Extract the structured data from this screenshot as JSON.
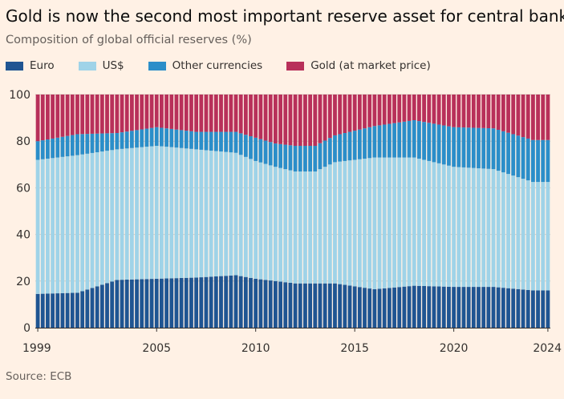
{
  "header": {
    "title": "Gold is now the second most important reserve asset for central banks",
    "subtitle": "Composition of global official reserves (%)"
  },
  "source": "Source: ECB",
  "colors": {
    "euro": "#1f5592",
    "usd": "#9fd3e8",
    "other": "#2b8ec9",
    "gold": "#b8305a",
    "grid": "#d6c9bd",
    "background": "#fff1e5"
  },
  "chart_data": {
    "type": "bar",
    "stacked": true,
    "interval": "quarterly",
    "x_start": 1999,
    "x_end": 2024,
    "ylim": [
      0,
      100
    ],
    "yticks": [
      0,
      20,
      40,
      60,
      80,
      100
    ],
    "xticks": [
      "1999",
      "2005",
      "2010",
      "2015",
      "2020",
      "2024"
    ],
    "legend_position": "top-left",
    "grid": true,
    "series": [
      {
        "name": "Euro",
        "color_key": "euro",
        "key_years": [
          1999,
          2001,
          2003,
          2005,
          2007,
          2009,
          2010,
          2011,
          2012,
          2013,
          2014,
          2016,
          2018,
          2020,
          2022,
          2024
        ],
        "key_values": [
          14.5,
          15,
          20.5,
          21,
          21.5,
          22.5,
          21,
          20,
          19,
          19,
          19,
          16.5,
          18,
          17.5,
          17.5,
          16
        ]
      },
      {
        "name": "US$",
        "color_key": "usd",
        "key_years": [
          1999,
          2001,
          2003,
          2005,
          2007,
          2009,
          2010,
          2011,
          2012,
          2013,
          2014,
          2016,
          2018,
          2020,
          2022,
          2024
        ],
        "key_values": [
          57.5,
          59,
          56,
          57,
          55,
          52.5,
          50.5,
          49,
          48,
          48,
          52,
          56.5,
          55,
          51.5,
          50.5,
          46.5
        ]
      },
      {
        "name": "Other currencies",
        "color_key": "other",
        "key_years": [
          1999,
          2001,
          2003,
          2005,
          2007,
          2009,
          2010,
          2011,
          2012,
          2013,
          2014,
          2016,
          2018,
          2020,
          2022,
          2024
        ],
        "key_values": [
          8,
          9,
          7,
          8,
          7.5,
          9,
          10,
          10,
          11,
          11,
          11.5,
          13.5,
          16,
          17,
          17.5,
          18
        ]
      },
      {
        "name": "Gold (at market price)",
        "color_key": "gold",
        "key_years": [
          1999,
          2001,
          2003,
          2005,
          2007,
          2009,
          2010,
          2011,
          2012,
          2013,
          2014,
          2016,
          2018,
          2020,
          2022,
          2024
        ],
        "key_values": [
          20,
          17,
          16.5,
          14,
          16,
          16,
          18.5,
          21,
          22,
          22,
          17.5,
          13.5,
          11,
          14,
          14.5,
          19.5
        ]
      }
    ]
  }
}
